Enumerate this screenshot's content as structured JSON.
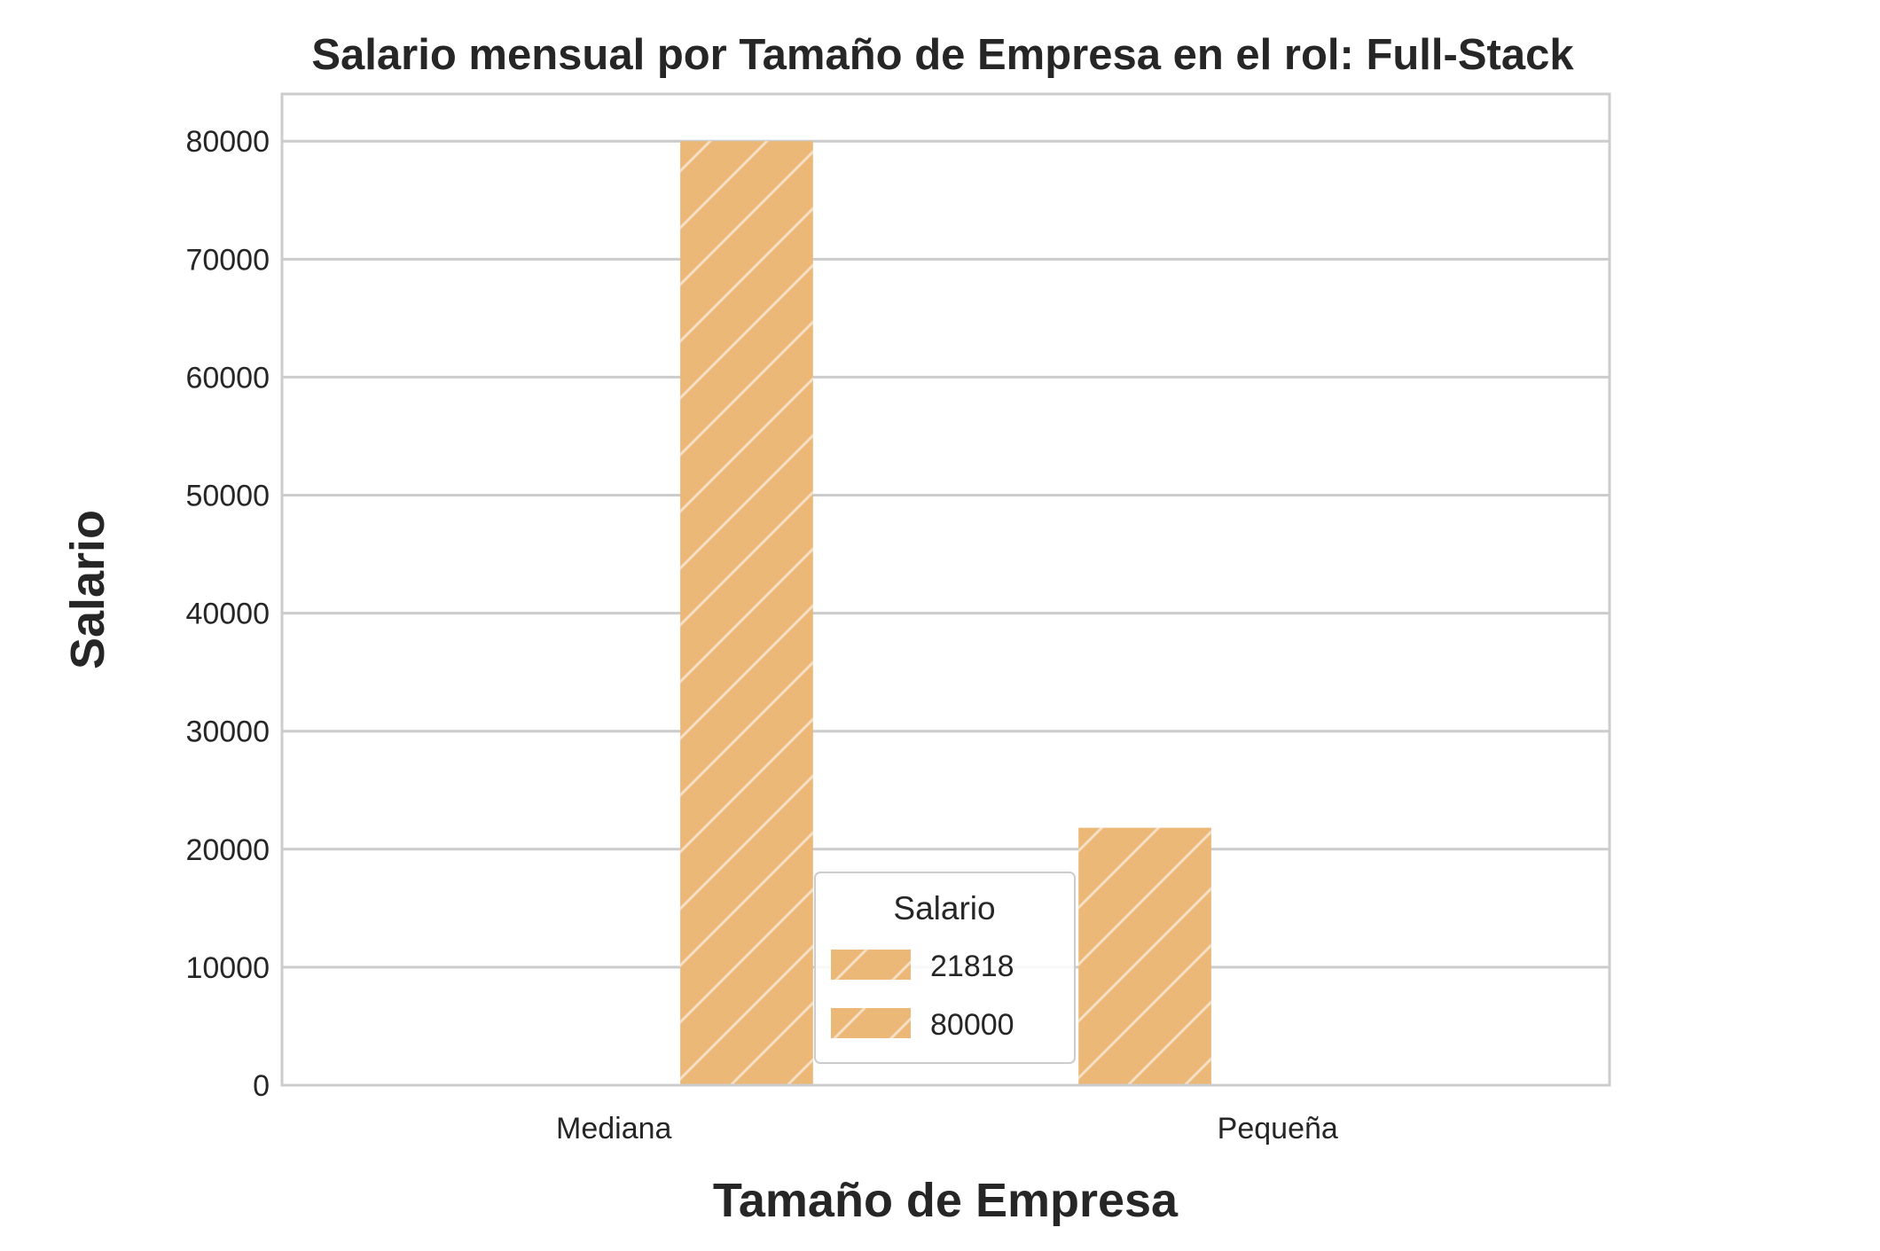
{
  "chart_data": {
    "type": "bar",
    "title": "Salario mensual por Tamaño de Empresa en el rol: Full-Stack",
    "xlabel": "Tamaño de Empresa",
    "ylabel": "Salario",
    "categories": [
      "Mediana",
      "Pequeña"
    ],
    "series": [
      {
        "name": "21818",
        "values": [
          null,
          21818
        ]
      },
      {
        "name": "80000",
        "values": [
          80000,
          null
        ]
      }
    ],
    "ylim": [
      0,
      84000
    ],
    "yticks": [
      0,
      10000,
      20000,
      30000,
      40000,
      50000,
      60000,
      70000,
      80000
    ],
    "grid": true,
    "hatch": "diagonal",
    "bar_color": "#ebb877",
    "legend": {
      "title": "Salario",
      "placement": "lower-center"
    }
  }
}
